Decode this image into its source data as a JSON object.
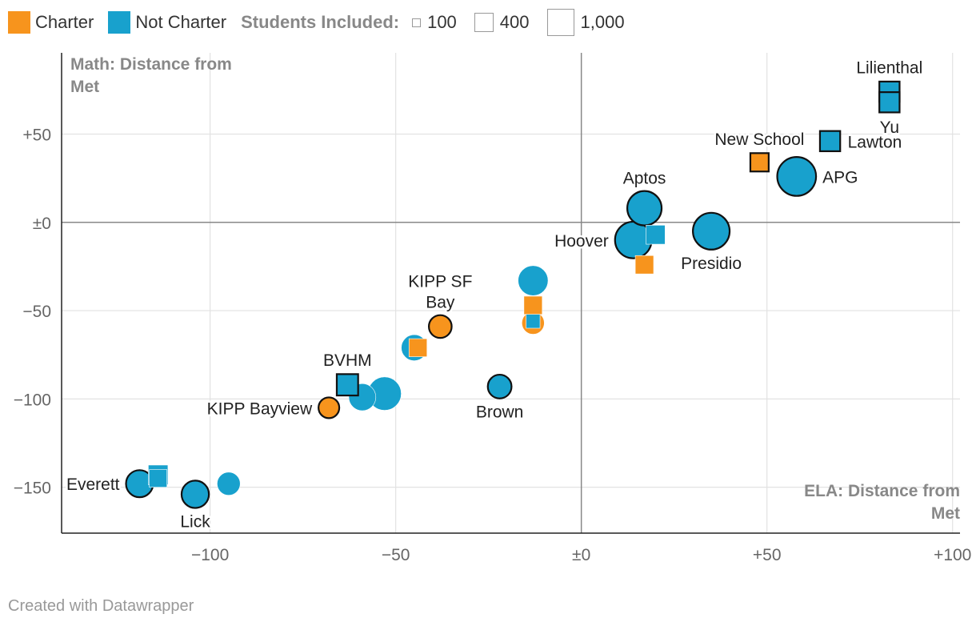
{
  "legend": {
    "charter_label": "Charter",
    "not_charter_label": "Not Charter",
    "size_title": "Students Included:",
    "size_100": "100",
    "size_400": "400",
    "size_1000": "1,000"
  },
  "colors": {
    "charter": "#f7941d",
    "not_charter": "#18a1cd"
  },
  "footer": "Created with Datawrapper",
  "chart_data": {
    "type": "scatter",
    "xlabel": "ELA: Distance from Met",
    "ylabel": "Math: Distance from Met",
    "xlim": [
      -140,
      102
    ],
    "ylim": [
      -176,
      96
    ],
    "xticks": [
      -100,
      -50,
      0,
      50,
      100
    ],
    "xtick_labels": [
      "−100",
      "−50",
      "±0",
      "+50",
      "+100"
    ],
    "yticks": [
      50,
      0,
      -50,
      -100,
      -150
    ],
    "ytick_labels": [
      "+50",
      "±0",
      "−50",
      "−100",
      "−150"
    ],
    "points": [
      {
        "name": "Lilienthal",
        "x": 83,
        "y": 74,
        "shape": "square",
        "group": "Not Charter",
        "students": 260,
        "outline": true,
        "label": "Lilienthal",
        "label_pos": "above"
      },
      {
        "name": "Yu",
        "x": 83,
        "y": 68,
        "shape": "square",
        "group": "Not Charter",
        "students": 260,
        "outline": true,
        "label": "Yu",
        "label_pos": "below"
      },
      {
        "name": "Lawton",
        "x": 67,
        "y": 46,
        "shape": "square",
        "group": "Not Charter",
        "students": 260,
        "outline": true,
        "label": "Lawton",
        "label_pos": "right"
      },
      {
        "name": "New School",
        "x": 48,
        "y": 34,
        "shape": "square",
        "group": "Charter",
        "students": 200,
        "outline": true,
        "label": "New School",
        "label_pos": "above"
      },
      {
        "name": "APG",
        "x": 58,
        "y": 26,
        "shape": "circle",
        "group": "Not Charter",
        "students": 1000,
        "outline": true,
        "label": "APG",
        "label_pos": "right"
      },
      {
        "name": "Aptos",
        "x": 17,
        "y": 8,
        "shape": "circle",
        "group": "Not Charter",
        "students": 750,
        "outline": true,
        "label": "Aptos",
        "label_pos": "above"
      },
      {
        "name": "Presidio",
        "x": 35,
        "y": -5,
        "shape": "circle",
        "group": "Not Charter",
        "students": 880,
        "outline": true,
        "label": "Presidio",
        "label_pos": "below"
      },
      {
        "name": "Hoover",
        "x": 14,
        "y": -10,
        "shape": "circle",
        "group": "Not Charter",
        "students": 870,
        "outline": true,
        "label": "Hoover",
        "label_pos": "left"
      },
      {
        "name": "",
        "x": 20,
        "y": -7,
        "shape": "square",
        "group": "Not Charter",
        "students": 220,
        "outline": false,
        "label": "",
        "label_pos": "none"
      },
      {
        "name": "",
        "x": 17,
        "y": -24,
        "shape": "square",
        "group": "Charter",
        "students": 200,
        "outline": false,
        "label": "",
        "label_pos": "none"
      },
      {
        "name": "",
        "x": -13,
        "y": -33,
        "shape": "circle",
        "group": "Not Charter",
        "students": 540,
        "outline": false,
        "label": "",
        "label_pos": "none"
      },
      {
        "name": "",
        "x": -13,
        "y": -47,
        "shape": "square",
        "group": "Charter",
        "students": 200,
        "outline": false,
        "label": "",
        "label_pos": "none"
      },
      {
        "name": "",
        "x": -13,
        "y": -57,
        "shape": "circle",
        "group": "Charter",
        "students": 260,
        "outline": false,
        "label": "",
        "label_pos": "none"
      },
      {
        "name": "",
        "x": -13,
        "y": -56,
        "shape": "square",
        "group": "Not Charter",
        "students": 90,
        "outline": false,
        "label": "",
        "label_pos": "none"
      },
      {
        "name": "KIPP SF Bay",
        "x": -38,
        "y": -59,
        "shape": "circle",
        "group": "Charter",
        "students": 270,
        "outline": true,
        "label": "KIPP SF Bay",
        "label_pos": "above-multi",
        "label_lines": [
          "KIPP SF",
          "Bay"
        ]
      },
      {
        "name": "",
        "x": -44,
        "y": -71,
        "shape": "square",
        "group": "Charter",
        "students": 190,
        "outline": false,
        "label": "",
        "label_pos": "none"
      },
      {
        "name": "",
        "x": -45,
        "y": -71,
        "shape": "circle",
        "group": "Not Charter",
        "students": 380,
        "outline": false,
        "label": "",
        "label_pos": "none"
      },
      {
        "name": "Brown",
        "x": -22,
        "y": -93,
        "shape": "circle",
        "group": "Not Charter",
        "students": 300,
        "outline": true,
        "label": "Brown",
        "label_pos": "below"
      },
      {
        "name": "BVHM",
        "x": -63,
        "y": -92,
        "shape": "square",
        "group": "Not Charter",
        "students": 300,
        "outline": true,
        "label": "BVHM",
        "label_pos": "above"
      },
      {
        "name": "",
        "x": -59,
        "y": -99,
        "shape": "circle",
        "group": "Not Charter",
        "students": 420,
        "outline": false,
        "label": "",
        "label_pos": "none"
      },
      {
        "name": "",
        "x": -53,
        "y": -97,
        "shape": "circle",
        "group": "Not Charter",
        "students": 700,
        "outline": false,
        "label": "",
        "label_pos": "none"
      },
      {
        "name": "KIPP Bayview",
        "x": -68,
        "y": -105,
        "shape": "circle",
        "group": "Charter",
        "students": 210,
        "outline": true,
        "label": "KIPP Bayview",
        "label_pos": "left"
      },
      {
        "name": "",
        "x": -114,
        "y": -143,
        "shape": "square",
        "group": "Not Charter",
        "students": 240,
        "outline": false,
        "label": "",
        "label_pos": "none"
      },
      {
        "name": "",
        "x": -114,
        "y": -145,
        "shape": "square",
        "group": "Not Charter",
        "students": 180,
        "outline": false,
        "label": "",
        "label_pos": "none"
      },
      {
        "name": "Everett",
        "x": -119,
        "y": -148,
        "shape": "circle",
        "group": "Not Charter",
        "students": 420,
        "outline": true,
        "label": "Everett",
        "label_pos": "left"
      },
      {
        "name": "Lick",
        "x": -104,
        "y": -154,
        "shape": "circle",
        "group": "Not Charter",
        "students": 430,
        "outline": true,
        "label": "Lick",
        "label_pos": "below"
      },
      {
        "name": "",
        "x": -95,
        "y": -148,
        "shape": "circle",
        "group": "Not Charter",
        "students": 280,
        "outline": false,
        "label": "",
        "label_pos": "none"
      }
    ]
  }
}
